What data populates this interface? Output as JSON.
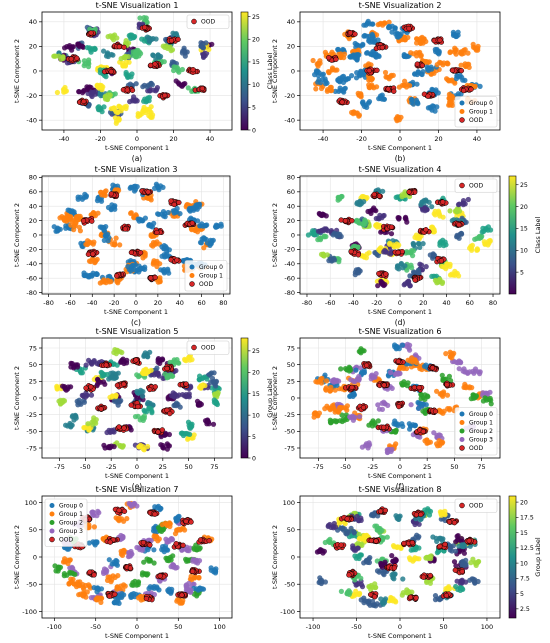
{
  "figure": {
    "panels": [
      {
        "id": "a",
        "title": "t-SNE Visualization 1",
        "xlabel": "t-SNE Component 1",
        "ylabel": "t-SNE Component 2",
        "caption": "(a)",
        "xticks": [
          -40,
          -20,
          0,
          20,
          40
        ],
        "yticks": [
          -40,
          -20,
          0,
          20,
          40
        ],
        "xlim": [
          -52,
          52
        ],
        "ylim": [
          -48,
          48
        ],
        "colorbar": {
          "label": "Class Label",
          "ticks": [
            0,
            5,
            10,
            15,
            20,
            25
          ],
          "range": [
            0,
            26
          ],
          "colormap": "viridis"
        },
        "legend": [
          {
            "label": "OOD",
            "color": "#d62728"
          }
        ],
        "legend_position": "top-right"
      },
      {
        "id": "b",
        "title": "t-SNE Visualization 2",
        "xlabel": "t-SNE Component 1",
        "ylabel": "t-SNE Component 2",
        "caption": "(b)",
        "xticks": [
          -40,
          -20,
          0,
          20,
          40
        ],
        "yticks": [
          -40,
          -20,
          0,
          20,
          40
        ],
        "xlim": [
          -52,
          52
        ],
        "ylim": [
          -48,
          48
        ],
        "legend": [
          {
            "label": "Group 0",
            "color": "#1f77b4"
          },
          {
            "label": "Group 1",
            "color": "#ff7f0e"
          },
          {
            "label": "OOD",
            "color": "#d62728"
          }
        ],
        "legend_position": "bottom-right"
      },
      {
        "id": "c",
        "title": "t-SNE Visualization 3",
        "xlabel": "t-SNE Component 1",
        "ylabel": "t-SNE Component 2",
        "caption": "(c)",
        "xticks": [
          -80,
          -60,
          -40,
          -20,
          0,
          20,
          40,
          60,
          80
        ],
        "yticks": [
          -80,
          -60,
          -40,
          -20,
          0,
          20,
          40,
          60,
          80
        ],
        "xlim": [
          -86,
          86
        ],
        "ylim": [
          -82,
          82
        ],
        "legend": [
          {
            "label": "Group 0",
            "color": "#1f77b4"
          },
          {
            "label": "Group 1",
            "color": "#ff7f0e"
          },
          {
            "label": "OOD",
            "color": "#d62728"
          }
        ],
        "legend_position": "bottom-right"
      },
      {
        "id": "d",
        "title": "t-SNE Visualization 4",
        "xlabel": "t-SNE Component 1",
        "ylabel": "t-SNE Component 2",
        "caption": "(d)",
        "xticks": [
          -80,
          -60,
          -40,
          -20,
          0,
          20,
          40,
          60,
          80
        ],
        "yticks": [
          -80,
          -60,
          -40,
          -20,
          0,
          20,
          40,
          60,
          80
        ],
        "xlim": [
          -86,
          86
        ],
        "ylim": [
          -82,
          82
        ],
        "colorbar": {
          "label": "Class Label",
          "ticks": [
            5,
            10,
            15,
            20,
            25
          ],
          "range": [
            0,
            27
          ],
          "colormap": "viridis"
        },
        "legend": [
          {
            "label": "OOD",
            "color": "#d62728"
          }
        ],
        "legend_position": "top-right"
      },
      {
        "id": "e",
        "title": "t-SNE Visualization 5",
        "xlabel": "t-SNE Component 1",
        "ylabel": "t-SNE Component 2",
        "caption": "(e)",
        "xticks": [
          -75,
          -50,
          -25,
          0,
          25,
          50,
          75
        ],
        "yticks": [
          -75,
          -50,
          -25,
          0,
          25,
          50,
          75
        ],
        "xlim": [
          -92,
          92
        ],
        "ylim": [
          -90,
          90
        ],
        "colorbar": {
          "label": "Group Label",
          "ticks": [
            0,
            5,
            10,
            15,
            20,
            25
          ],
          "range": [
            0,
            28
          ],
          "colormap": "viridis"
        },
        "legend": [
          {
            "label": "OOD",
            "color": "#d62728"
          }
        ],
        "legend_position": "top-right"
      },
      {
        "id": "f",
        "title": "t-SNE Visualization 6",
        "xlabel": "t-SNE Component 1",
        "ylabel": "t-SNE Component 2",
        "caption": "(f)",
        "xticks": [
          -75,
          -50,
          -25,
          0,
          25,
          50,
          75
        ],
        "yticks": [
          -75,
          -50,
          -25,
          0,
          25,
          50,
          75
        ],
        "xlim": [
          -92,
          92
        ],
        "ylim": [
          -90,
          90
        ],
        "legend": [
          {
            "label": "Group 0",
            "color": "#1f77b4"
          },
          {
            "label": "Group 1",
            "color": "#ff7f0e"
          },
          {
            "label": "Group 2",
            "color": "#2ca02c"
          },
          {
            "label": "Group 3",
            "color": "#9467bd"
          },
          {
            "label": "OOD",
            "color": "#d62728"
          }
        ],
        "legend_position": "bottom-right"
      },
      {
        "id": "g",
        "title": "t-SNE Visualization 7",
        "xlabel": "t-SNE Component 1",
        "ylabel": "t-SNE Component 2",
        "caption": "(g)",
        "xticks": [
          -100,
          -50,
          0,
          50,
          100
        ],
        "yticks": [
          -100,
          -50,
          0,
          50,
          100
        ],
        "xlim": [
          -115,
          115
        ],
        "ylim": [
          -112,
          112
        ],
        "legend": [
          {
            "label": "Group 0",
            "color": "#1f77b4"
          },
          {
            "label": "Group 1",
            "color": "#ff7f0e"
          },
          {
            "label": "Group 2",
            "color": "#2ca02c"
          },
          {
            "label": "Group 3",
            "color": "#9467bd"
          },
          {
            "label": "OOD",
            "color": "#d62728"
          }
        ],
        "legend_position": "top-left"
      },
      {
        "id": "h",
        "title": "t-SNE Visualization 8",
        "xlabel": "t-SNE Component 1",
        "ylabel": "t-SNE Component 2",
        "caption": "(h)",
        "xticks": [
          -100,
          -50,
          0,
          50,
          100
        ],
        "yticks": [
          -100,
          -50,
          0,
          50,
          100
        ],
        "xlim": [
          -115,
          115
        ],
        "ylim": [
          -112,
          112
        ],
        "colorbar": {
          "label": "Group Label",
          "ticks": [
            2.5,
            5.0,
            7.5,
            10.0,
            12.5,
            15.0,
            17.5,
            20.0
          ],
          "range": [
            1,
            21
          ],
          "colormap": "viridis"
        },
        "legend": [
          {
            "label": "OOD",
            "color": "#d62728"
          }
        ],
        "legend_position": "top-right"
      }
    ]
  },
  "chart_data": [
    {
      "type": "scatter",
      "title": "t-SNE Visualization 1",
      "xlabel": "t-SNE Component 1",
      "ylabel": "t-SNE Component 2",
      "xlim": [
        -52,
        52
      ],
      "ylim": [
        -48,
        48
      ],
      "grid": true,
      "legend_position": "top-right",
      "series": [
        {
          "name": "OOD",
          "color": "#d62728",
          "clusters": [
            [
              -25,
              30
            ],
            [
              -10,
              20
            ],
            [
              5,
              35
            ],
            [
              20,
              25
            ],
            [
              -35,
              10
            ],
            [
              -15,
              0
            ],
            [
              10,
              5
            ],
            [
              30,
              0
            ],
            [
              -5,
              -15
            ],
            [
              15,
              -20
            ],
            [
              -30,
              -25
            ],
            [
              35,
              -15
            ]
          ]
        }
      ],
      "colorbar": {
        "label": "Class Label",
        "range": [
          0,
          26
        ]
      }
    },
    {
      "type": "scatter",
      "title": "t-SNE Visualization 2",
      "xlabel": "t-SNE Component 1",
      "ylabel": "t-SNE Component 2",
      "xlim": [
        -52,
        52
      ],
      "ylim": [
        -48,
        48
      ],
      "grid": true,
      "legend_position": "bottom-right",
      "series": [
        {
          "name": "Group 0",
          "color": "#1f77b4"
        },
        {
          "name": "Group 1",
          "color": "#ff7f0e"
        },
        {
          "name": "OOD",
          "color": "#d62728",
          "clusters": [
            [
              -25,
              30
            ],
            [
              -10,
              20
            ],
            [
              5,
              35
            ],
            [
              20,
              25
            ],
            [
              -35,
              10
            ],
            [
              -15,
              0
            ],
            [
              10,
              5
            ],
            [
              30,
              0
            ],
            [
              -5,
              -15
            ],
            [
              15,
              -20
            ],
            [
              -30,
              -25
            ],
            [
              35,
              -15
            ]
          ]
        }
      ]
    },
    {
      "type": "scatter",
      "title": "t-SNE Visualization 3",
      "xlabel": "t-SNE Component 1",
      "ylabel": "t-SNE Component 2",
      "xlim": [
        -86,
        86
      ],
      "ylim": [
        -82,
        82
      ],
      "grid": true,
      "legend_position": "bottom-right",
      "series": [
        {
          "name": "Group 0",
          "color": "#1f77b4"
        },
        {
          "name": "Group 1",
          "color": "#ff7f0e"
        },
        {
          "name": "OOD",
          "color": "#d62728",
          "clusters": [
            [
              -20,
              55
            ],
            [
              10,
              60
            ],
            [
              35,
              45
            ],
            [
              -45,
              20
            ],
            [
              -10,
              10
            ],
            [
              20,
              5
            ],
            [
              50,
              15
            ],
            [
              -40,
              -25
            ],
            [
              0,
              -25
            ],
            [
              35,
              -35
            ],
            [
              -15,
              -55
            ],
            [
              15,
              -60
            ]
          ]
        }
      ]
    },
    {
      "type": "scatter",
      "title": "t-SNE Visualization 4",
      "xlabel": "t-SNE Component 1",
      "ylabel": "t-SNE Component 2",
      "xlim": [
        -86,
        86
      ],
      "ylim": [
        -82,
        82
      ],
      "grid": true,
      "legend_position": "top-right",
      "series": [
        {
          "name": "OOD",
          "color": "#d62728",
          "clusters": [
            [
              -20,
              55
            ],
            [
              10,
              60
            ],
            [
              35,
              45
            ],
            [
              -45,
              20
            ],
            [
              -10,
              10
            ],
            [
              20,
              5
            ],
            [
              50,
              15
            ],
            [
              -40,
              -25
            ],
            [
              0,
              -25
            ],
            [
              35,
              -35
            ],
            [
              -15,
              -55
            ],
            [
              15,
              -60
            ]
          ]
        }
      ],
      "colorbar": {
        "label": "Class Label",
        "range": [
          0,
          27
        ]
      }
    },
    {
      "type": "scatter",
      "title": "t-SNE Visualization 5",
      "xlabel": "t-SNE Component 1",
      "ylabel": "t-SNE Component 2",
      "xlim": [
        -92,
        92
      ],
      "ylim": [
        -90,
        90
      ],
      "grid": true,
      "legend_position": "top-right",
      "series": [
        {
          "name": "OOD",
          "color": "#d62728",
          "clusters": [
            [
              -30,
              50
            ],
            [
              0,
              55
            ],
            [
              30,
              45
            ],
            [
              -45,
              15
            ],
            [
              -15,
              20
            ],
            [
              15,
              15
            ],
            [
              45,
              20
            ],
            [
              -35,
              -15
            ],
            [
              0,
              -10
            ],
            [
              30,
              -20
            ],
            [
              -15,
              -45
            ],
            [
              20,
              -50
            ]
          ]
        }
      ],
      "colorbar": {
        "label": "Group Label",
        "range": [
          0,
          28
        ]
      }
    },
    {
      "type": "scatter",
      "title": "t-SNE Visualization 6",
      "xlabel": "t-SNE Component 1",
      "ylabel": "t-SNE Component 2",
      "xlim": [
        -92,
        92
      ],
      "ylim": [
        -90,
        90
      ],
      "grid": true,
      "legend_position": "bottom-right",
      "series": [
        {
          "name": "Group 0",
          "color": "#1f77b4"
        },
        {
          "name": "Group 1",
          "color": "#ff7f0e"
        },
        {
          "name": "Group 2",
          "color": "#2ca02c"
        },
        {
          "name": "Group 3",
          "color": "#9467bd"
        },
        {
          "name": "OOD",
          "color": "#d62728",
          "clusters": [
            [
              -30,
              50
            ],
            [
              0,
              55
            ],
            [
              30,
              45
            ],
            [
              -45,
              15
            ],
            [
              -15,
              20
            ],
            [
              15,
              15
            ],
            [
              45,
              20
            ],
            [
              -35,
              -15
            ],
            [
              0,
              -10
            ],
            [
              30,
              -20
            ],
            [
              -15,
              -45
            ],
            [
              20,
              -50
            ]
          ]
        }
      ]
    },
    {
      "type": "scatter",
      "title": "t-SNE Visualization 7",
      "xlabel": "t-SNE Component 1",
      "ylabel": "t-SNE Component 2",
      "xlim": [
        -115,
        115
      ],
      "ylim": [
        -112,
        112
      ],
      "grid": true,
      "legend_position": "top-left",
      "series": [
        {
          "name": "Group 0",
          "color": "#1f77b4"
        },
        {
          "name": "Group 1",
          "color": "#ff7f0e"
        },
        {
          "name": "Group 2",
          "color": "#2ca02c"
        },
        {
          "name": "Group 3",
          "color": "#9467bd"
        },
        {
          "name": "OOD",
          "color": "#d62728",
          "clusters": [
            [
              -60,
              70
            ],
            [
              -20,
              85
            ],
            [
              20,
              80
            ],
            [
              60,
              65
            ],
            [
              -70,
              20
            ],
            [
              -30,
              30
            ],
            [
              10,
              25
            ],
            [
              50,
              20
            ],
            [
              80,
              30
            ],
            [
              -55,
              -30
            ],
            [
              -10,
              -20
            ],
            [
              30,
              -35
            ],
            [
              70,
              -25
            ],
            [
              -30,
              -70
            ],
            [
              15,
              -75
            ],
            [
              55,
              -70
            ]
          ]
        }
      ]
    },
    {
      "type": "scatter",
      "title": "t-SNE Visualization 8",
      "xlabel": "t-SNE Component 1",
      "ylabel": "t-SNE Component 2",
      "xlim": [
        -115,
        115
      ],
      "ylim": [
        -112,
        112
      ],
      "grid": true,
      "legend_position": "top-right",
      "series": [
        {
          "name": "OOD",
          "color": "#d62728",
          "clusters": [
            [
              -60,
              70
            ],
            [
              -20,
              85
            ],
            [
              20,
              80
            ],
            [
              60,
              65
            ],
            [
              -70,
              20
            ],
            [
              -30,
              30
            ],
            [
              10,
              25
            ],
            [
              50,
              20
            ],
            [
              80,
              30
            ],
            [
              -55,
              -30
            ],
            [
              -10,
              -20
            ],
            [
              30,
              -35
            ],
            [
              70,
              -25
            ],
            [
              -30,
              -70
            ],
            [
              15,
              -75
            ],
            [
              55,
              -70
            ]
          ]
        }
      ],
      "colorbar": {
        "label": "Group Label",
        "range": [
          1,
          21
        ]
      }
    }
  ]
}
